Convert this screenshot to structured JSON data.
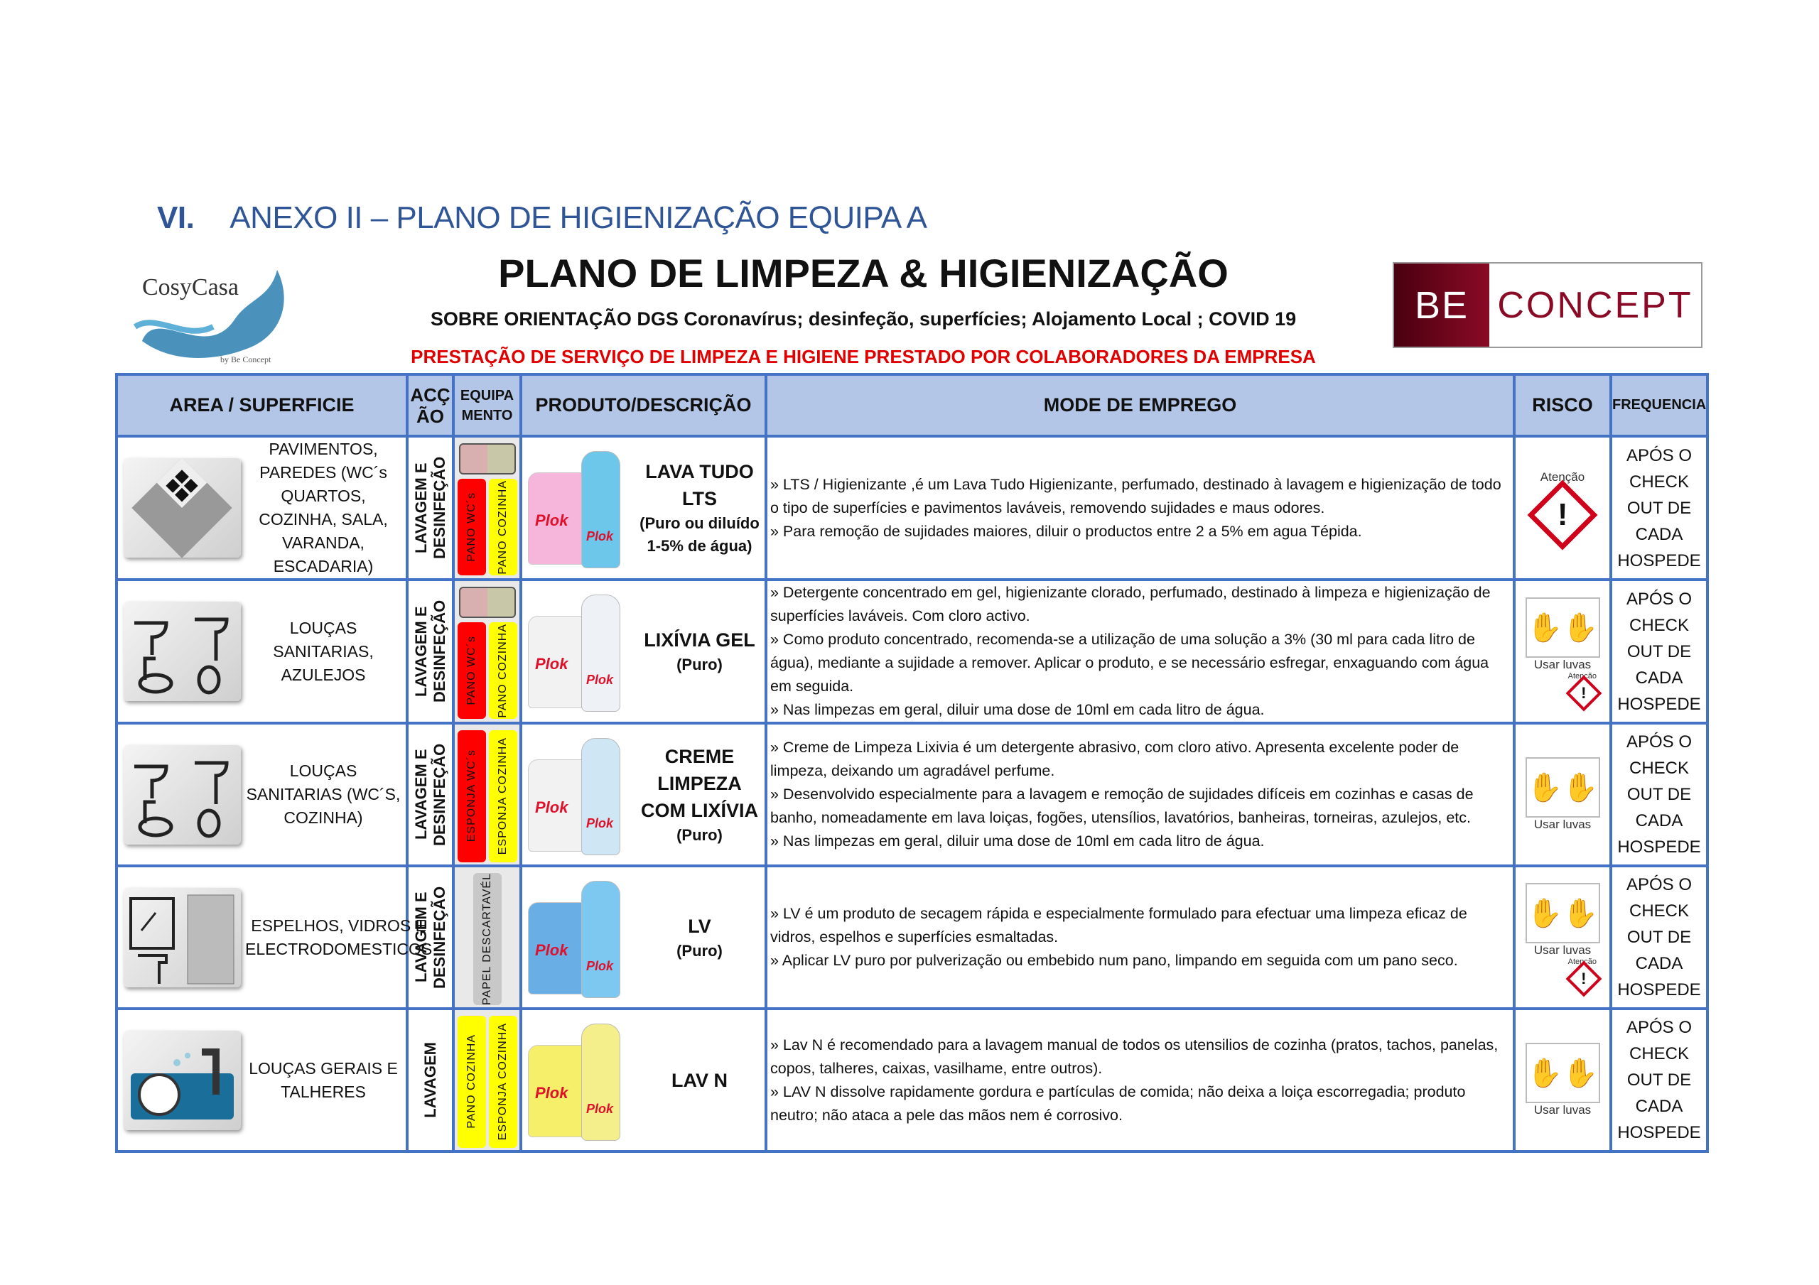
{
  "annex": {
    "number": "VI.",
    "title": "ANEXO II – PLANO DE HIGIENIZAÇÃO EQUIPA A"
  },
  "logos": {
    "left": "CosyCasa",
    "left_sub": "by Be Concept",
    "right_be": "BE",
    "right_concept": "CONCEPT"
  },
  "title": "PLANO DE LIMPEZA & HIGIENIZAÇÃO",
  "subtitle": "SOBRE ORIENTAÇÃO DGS Coronavírus; desinfeção, superfícies; Alojamento Local ; COVID 19",
  "notice": "PRESTAÇÃO DE SERVIÇO DE LIMPEZA E HIGIENE PRESTADO POR COLABORADORES DA EMPRESA",
  "colors": {
    "header_bg": "#b4c6e7",
    "border": "#4472c4",
    "red": "#e00000",
    "wc": "#ff0000",
    "kitchen": "#ffff00",
    "paper": "#c8c8c8"
  },
  "headers": {
    "area": "AREA / SUPERFICIE",
    "accao": "ACÇ ÃO",
    "equip": "EQUIPA MENTO",
    "produto": "PRODUTO/DESCRIÇÃO",
    "modo": "MODE DE EMPREGO",
    "risco": "RISCO",
    "frequencia": "FREQUENCIA"
  },
  "brand": "Plok",
  "risk_labels": {
    "attention": "Atenção",
    "gloves": "Usar luvas"
  },
  "rows": [
    {
      "area": "PAVIMENTOS, PAREDES (WC´s QUARTOS, COZINHA, SALA, VARANDA, ESCADARIA)",
      "icon": "floor-tiles-icon",
      "accao": "LAVAGEM E DESINFEÇÃO",
      "equip": [
        "PANO WC´s",
        "PANO COZINHA"
      ],
      "product": "LAVA TUDO LTS",
      "product_note": "(Puro ou diluído 1-5% de água)",
      "modo": [
        "» LTS / Higienizante ,é um Lava Tudo Higienizante, perfumado, destinado à lavagem e higienização de todo o tipo de superfícies e pavimentos laváveis, removendo sujidades e maus odores.",
        "» Para remoção de sujidades maiores, diluir o productos entre 2 a 5% em agua Tépida."
      ],
      "risk": "attention",
      "frequencia": "APÓS O CHECK OUT DE CADA HOSPEDE"
    },
    {
      "area": "LOUÇAS SANITARIAS, AZULEJOS",
      "icon": "sanitary-ware-icon",
      "accao": "LAVAGEM E DESINFEÇÃO",
      "equip": [
        "PANO WC´s",
        "PANO COZINHA"
      ],
      "product": "LIXÍVIA GEL",
      "product_note": "(Puro)",
      "modo": [
        "» Detergente concentrado em gel, higienizante clorado, perfumado, destinado à limpeza e higienização de superfícies laváveis. Com cloro activo.",
        "» Como produto concentrado, recomenda-se a utilização de uma solução a 3% (30 ml para cada litro de água), mediante a sujidade a remover. Aplicar o produto, e se necessário esfregar, enxaguando com água em seguida.",
        "» Nas limpezas em geral, diluir uma dose de 10ml em cada litro de água."
      ],
      "risk": "gloves+attention",
      "frequencia": "APÓS O CHECK OUT DE CADA HOSPEDE"
    },
    {
      "area": "LOUÇAS SANITARIAS (WC´S, COZINHA)",
      "icon": "sanitary-ware-icon",
      "accao": "LAVAGEM E DESINFEÇÃO",
      "equip": [
        "ESPONJA WC´s",
        "ESPONJA COZINHA"
      ],
      "product": "CREME LIMPEZA COM LIXÍVIA",
      "product_note": "(Puro)",
      "modo": [
        "» Creme de Limpeza Lixivia é um detergente abrasivo, com cloro ativo. Apresenta excelente poder de limpeza, deixando um agradável perfume.",
        "» Desenvolvido especialmente para a lavagem e remoção de sujidades difíceis em cozinhas e casas de banho, nomeadamente em lava loiças, fogões, utensílios, lavatórios, banheiras, torneiras, azulejos, etc.",
        "» Nas limpezas em geral, diluir uma dose de 10ml em cada litro de água."
      ],
      "risk": "gloves",
      "frequencia": "APÓS O CHECK OUT DE CADA HOSPEDE"
    },
    {
      "area": "ESPELHOS, VIDROS E ELECTRODOMESTICOS",
      "icon": "mirror-appliance-icon",
      "accao": "LAVAGEM E DESINFEÇÃO",
      "equip": [
        "PAPEL DESCARTAVÉL"
      ],
      "product": "LV",
      "product_note": "(Puro)",
      "modo": [
        "» LV é um produto de secagem rápida e especialmente formulado para efectuar uma limpeza eficaz de vidros, espelhos e superfícies esmaltadas.",
        "» Aplicar LV puro por pulverização ou embebido num pano, limpando em seguida com um pano seco."
      ],
      "risk": "gloves+attention",
      "frequencia": "APÓS O CHECK OUT DE CADA HOSPEDE"
    },
    {
      "area": "LOUÇAS GERAIS E TALHERES",
      "icon": "dishes-icon",
      "accao": "LAVAGEM",
      "equip": [
        "PANO COZINHA",
        "ESPONJA COZINHA"
      ],
      "product": "LAV N",
      "product_note": "",
      "modo": [
        "» Lav N é recomendado para a lavagem manual de todos os utensilios de cozinha (pratos, tachos, panelas, copos, talheres, caixas, vasilhame, entre outros).",
        "» LAV N dissolve rapidamente gordura e partículas de comida; não deixa a loiça escorregadia; produto neutro; não ataca a pele das mãos nem é corrosivo."
      ],
      "risk": "gloves",
      "frequencia": "APÓS O CHECK OUT DE CADA HOSPEDE"
    }
  ]
}
